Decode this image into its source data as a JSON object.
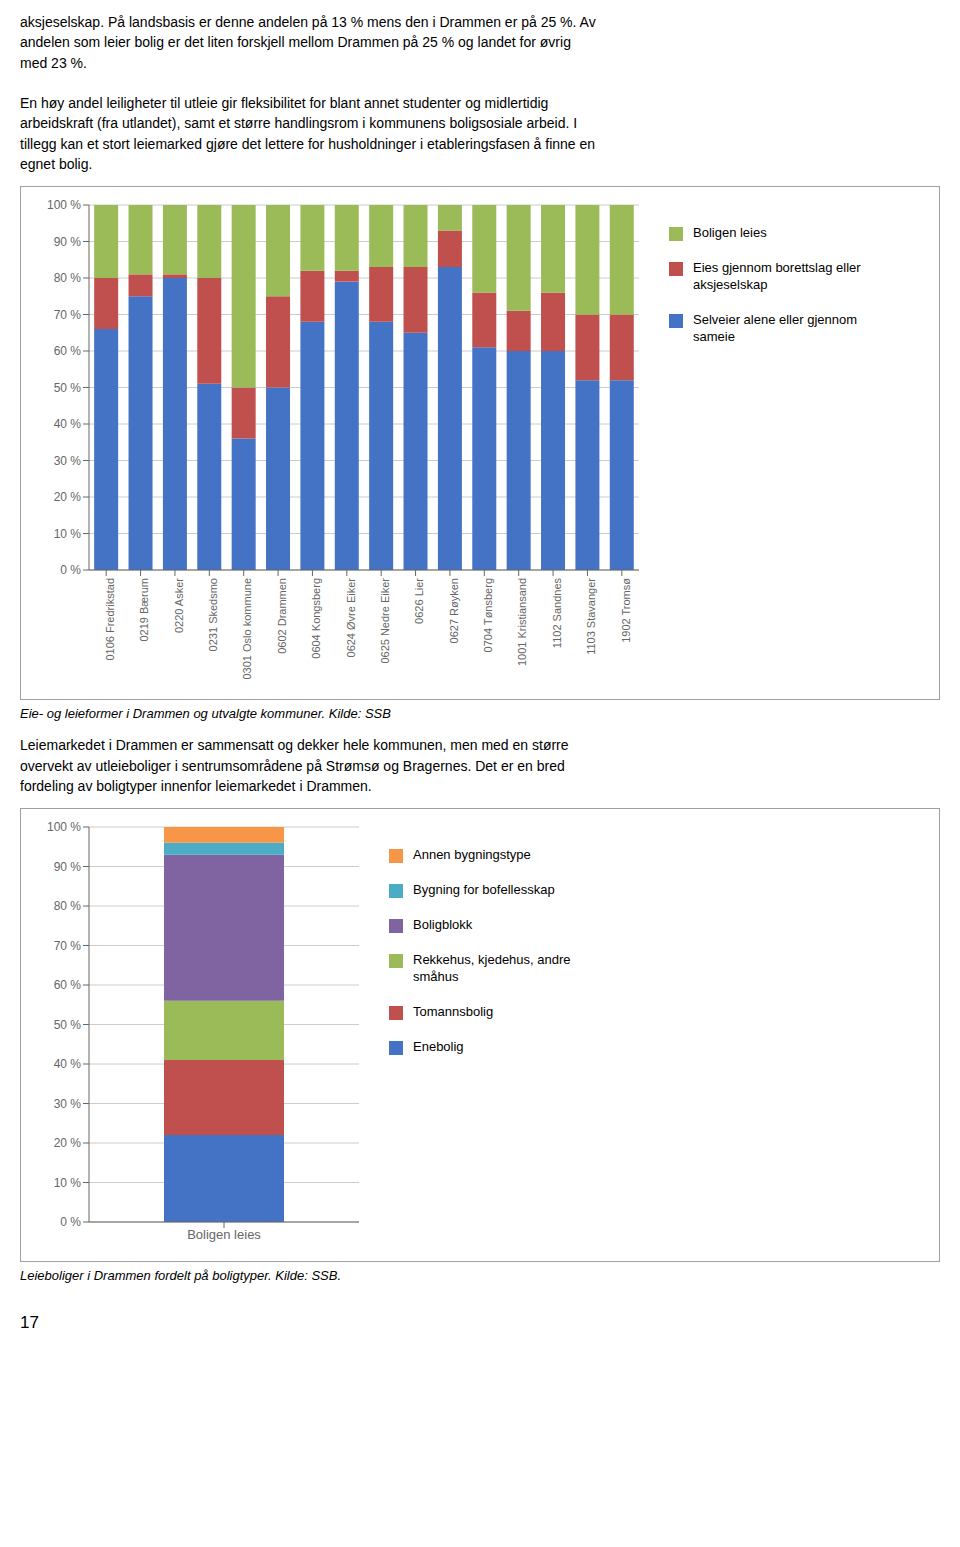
{
  "chart_data": [
    {
      "type": "bar",
      "stacked": true,
      "title": "Eie- og leieformer i Drammen og utvalgte kommuner. Kilde: SSB",
      "annotations": [
        "aksjeselskap. På landsbasis er denne andelen på 13 % mens den i Drammen er på 25 %. Av\nandelen som leier bolig er det liten forskjell mellom Drammen på 25 % og landet for øvrig\nmed 23 %.\n\nEn høy andel leiligheter til utleie gir fleksibilitet for blant annet studenter og midlertidig\narbeidskraft (fra utlandet), samt et større handlingsrom i kommunens boligsosiale arbeid. I\ntillegg kan et stort leiemarked gjøre det lettere for husholdninger i etableringsfasen å finne en\negnet bolig."
      ],
      "categories": [
        "0106 Fredrikstad",
        "0219 Bærum",
        "0220 Asker",
        "0231 Skedsmo",
        "0301 Oslo kommune",
        "0602 Drammen",
        "0604 Kongsberg",
        "0624 Øvre Eiker",
        "0625 Nedre Eiker",
        "0626 Lier",
        "0627 Røyken",
        "0704 Tønsberg",
        "1001 Kristiansand",
        "1102 Sandnes",
        "1103 Stavanger",
        "1902 Tromsø"
      ],
      "series": [
        {
          "name": "Selveier alene eller gjennom\nsameie",
          "color": "#4472C4",
          "values": [
            66,
            75,
            80,
            51,
            36,
            50,
            68,
            79,
            68,
            65,
            83,
            61,
            60,
            60,
            52,
            52
          ]
        },
        {
          "name": "Eies gjennom borettslag eller\naksjeselskap",
          "color": "#C0504D",
          "values": [
            14,
            6,
            1,
            29,
            14,
            25,
            14,
            3,
            15,
            18,
            10,
            15,
            11,
            16,
            18,
            18
          ]
        },
        {
          "name": "Boligen leies",
          "color": "#9BBB59",
          "values": [
            20,
            19,
            19,
            20,
            50,
            25,
            18,
            18,
            17,
            17,
            7,
            24,
            29,
            24,
            30,
            30
          ]
        }
      ],
      "ylim": [
        0,
        100
      ],
      "yticks": [
        {
          "value": 0,
          "label": "0 %"
        },
        {
          "value": 10,
          "label": "10 %"
        },
        {
          "value": 20,
          "label": "20 %"
        },
        {
          "value": 30,
          "label": "30 %"
        },
        {
          "value": 40,
          "label": "40 %"
        },
        {
          "value": 50,
          "label": "50 %"
        },
        {
          "value": 60,
          "label": "60 %"
        },
        {
          "value": 70,
          "label": "70 %"
        },
        {
          "value": 80,
          "label": "80 %"
        },
        {
          "value": 90,
          "label": "90 %"
        },
        {
          "value": 100,
          "label": "100 %"
        }
      ],
      "grid": true
    },
    {
      "type": "bar",
      "stacked": true,
      "title": "Leieboliger i Drammen fordelt på boligtyper. Kilde: SSB.",
      "annotations": [
        "Leiemarkedet i Drammen er sammensatt og dekker hele kommunen, men med en større\novervekt av utleieboliger i sentrumsområdene på Strømsø og Bragernes. Det er en bred\nfordeling av boligtyper innenfor leiemarkedet i Drammen.",
        "17"
      ],
      "categories": [
        "Boligen leies"
      ],
      "series": [
        {
          "name": "Enebolig",
          "color": "#4472C4",
          "values": [
            22
          ]
        },
        {
          "name": "Tomannsbolig",
          "color": "#C0504D",
          "values": [
            19
          ]
        },
        {
          "name": "Rekkehus, kjedehus, andre\nsmåhus",
          "color": "#9BBB59",
          "values": [
            15
          ]
        },
        {
          "name": "Boligblokk",
          "color": "#8064A2",
          "values": [
            37
          ]
        },
        {
          "name": "Bygning for bofellesskap",
          "color": "#4BACC6",
          "values": [
            3
          ]
        },
        {
          "name": "Annen bygningstype",
          "color": "#F79646",
          "values": [
            4
          ]
        }
      ],
      "ylim": [
        0,
        100
      ],
      "yticks": [
        {
          "value": 0,
          "label": "0 %"
        },
        {
          "value": 10,
          "label": "10 %"
        },
        {
          "value": 20,
          "label": "20 %"
        },
        {
          "value": 30,
          "label": "30 %"
        },
        {
          "value": 40,
          "label": "40 %"
        },
        {
          "value": 50,
          "label": "50 %"
        },
        {
          "value": 60,
          "label": "60 %"
        },
        {
          "value": 70,
          "label": "70 %"
        },
        {
          "value": 80,
          "label": "80 %"
        },
        {
          "value": 90,
          "label": "90 %"
        },
        {
          "value": 100,
          "label": "100 %"
        }
      ],
      "grid": true
    }
  ]
}
